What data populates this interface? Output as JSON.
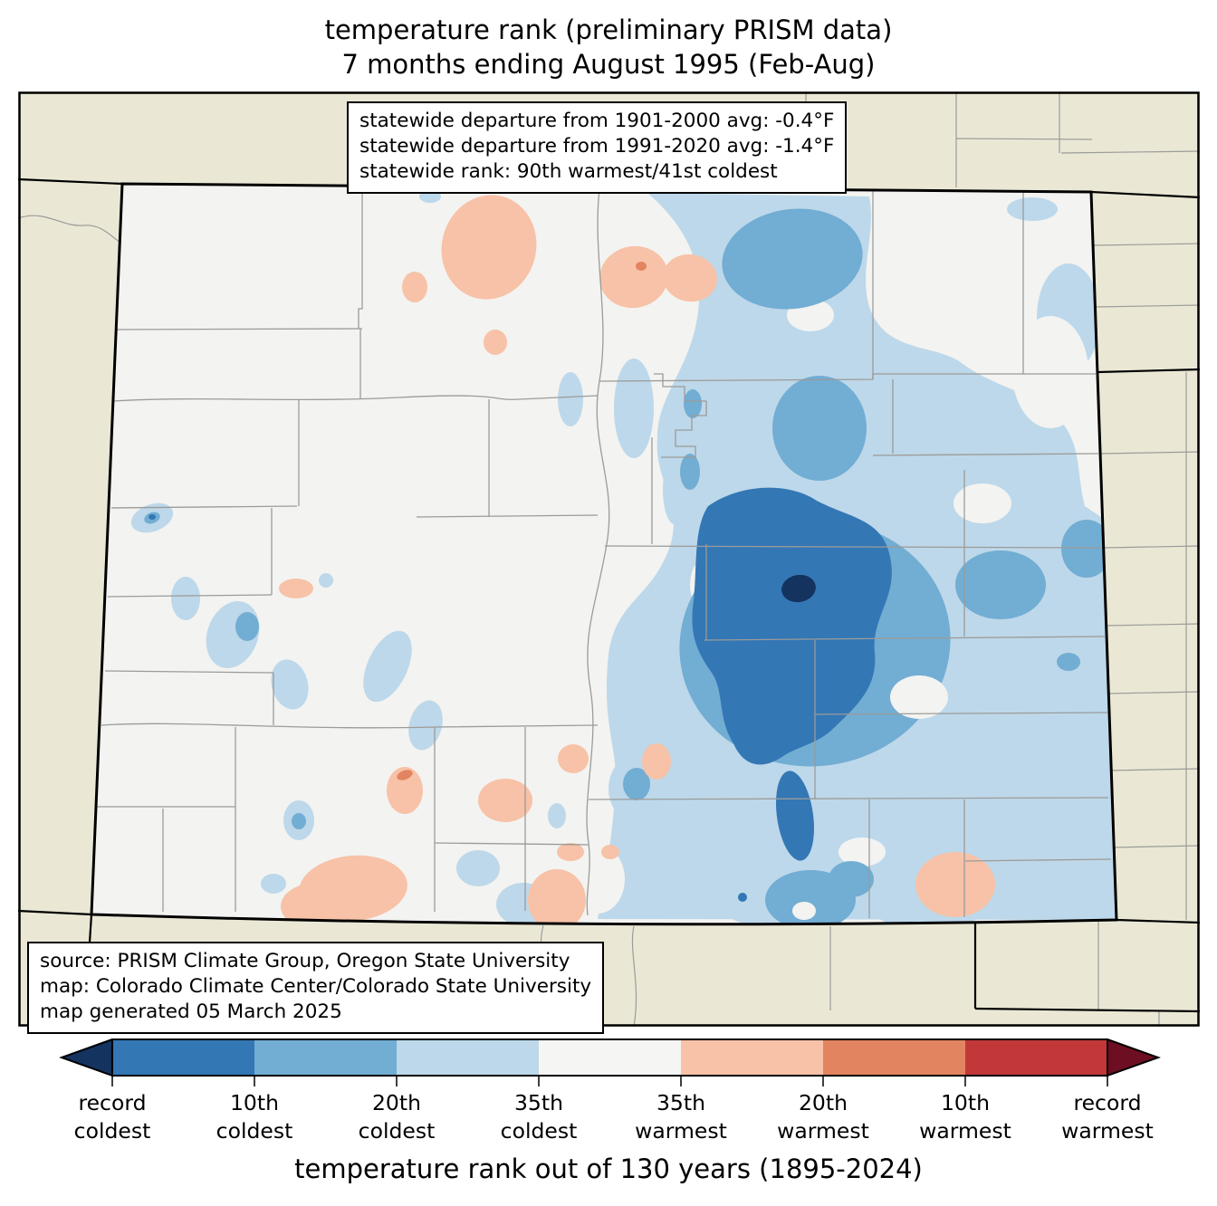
{
  "title": {
    "line1": "temperature rank (preliminary PRISM data)",
    "line2": "7 months ending August 1995 (Feb-Aug)"
  },
  "stats_box": {
    "lines": [
      "statewide departure from 1901-2000 avg: -0.4°F",
      "statewide departure from 1991-2020 avg: -1.4°F",
      "statewide rank: 90th warmest/41st coldest"
    ]
  },
  "source_box": {
    "lines": [
      "source: PRISM Climate Group, Oregon State University",
      "map: Colorado Climate Center/Colorado State University",
      "map generated 05 March 2025"
    ]
  },
  "palette": {
    "record-coldest": "#14335f",
    "coldest-10th": "#3377b5",
    "coldest-20th": "#72add3",
    "coldest-35th": "#bdd8ea",
    "near-normal": "#f5f5f3",
    "warmest-35th": "#f7c2a7",
    "warmest-20th": "#e2845f",
    "warmest-10th": "#c23839",
    "record-warmest": "#6e0e22",
    "land": "#eae8d5",
    "state-fill": "#f3f3f1",
    "county-line": "#9b9b99",
    "line": "#000000"
  },
  "legend": {
    "band_keys": [
      "coldest-10th",
      "coldest-20th",
      "coldest-35th",
      "near-normal",
      "warmest-35th",
      "warmest-20th",
      "warmest-10th"
    ],
    "extend_left_key": "record-coldest",
    "extend_right_key": "record-warmest",
    "tick_labels": [
      [
        "record",
        "coldest"
      ],
      [
        "10th",
        "coldest"
      ],
      [
        "20th",
        "coldest"
      ],
      [
        "35th",
        "coldest"
      ],
      [
        "35th",
        "warmest"
      ],
      [
        "20th",
        "warmest"
      ],
      [
        "10th",
        "warmest"
      ],
      [
        "record",
        "warmest"
      ]
    ],
    "caption": "temperature rank out of 130 years (1895-2024)"
  }
}
